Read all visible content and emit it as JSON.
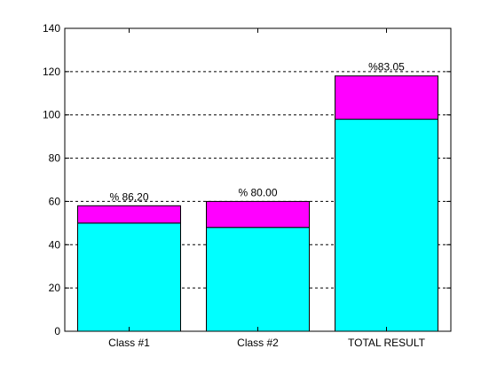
{
  "chart_data": {
    "type": "bar",
    "stacked": true,
    "categories": [
      "Class #1",
      "Class #2",
      "TOTAL RESULT"
    ],
    "series": [
      {
        "values": [
          50,
          48,
          98
        ],
        "color": "#00ffff"
      },
      {
        "values": [
          8,
          12,
          20
        ],
        "color": "#ff00ff"
      }
    ],
    "data_labels": [
      "% 86.20",
      "% 80.00",
      "%83.05"
    ],
    "title": "",
    "xlabel": "",
    "ylabel": "",
    "ylim": [
      0,
      140
    ],
    "yticks": [
      "0",
      "20",
      "40",
      "60",
      "80",
      "100",
      "120",
      "140"
    ],
    "grid": "horizontal dashed",
    "legend": "none"
  }
}
